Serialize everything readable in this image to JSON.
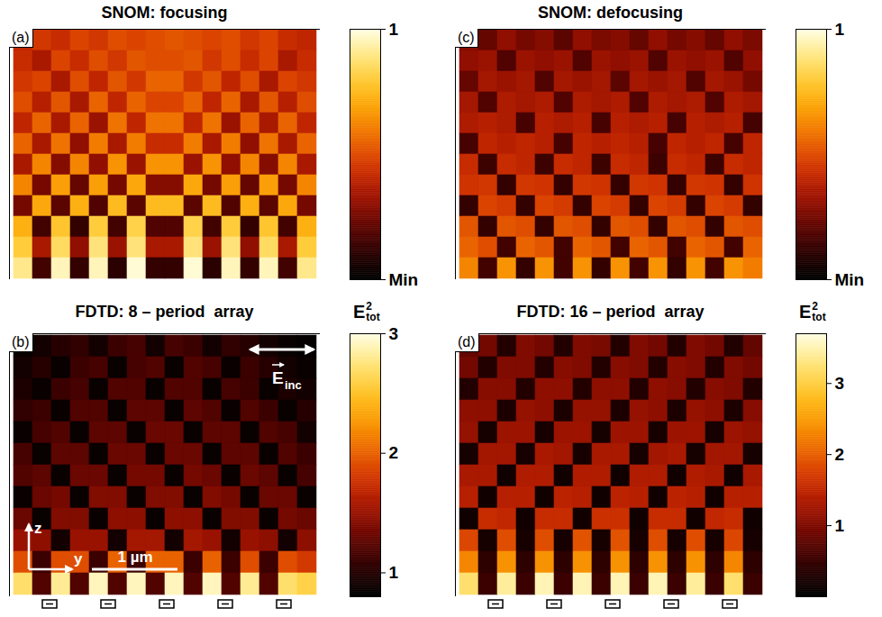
{
  "chart_data": [
    {
      "type": "heatmap",
      "panel": "(a)",
      "title": "SNOM: focusing",
      "tick_labels": false,
      "colorbar": {
        "range": [
          0,
          1
        ],
        "ticks": [
          {
            "value": 0,
            "label": "Min"
          },
          1
        ]
      },
      "values": [
        [
          0.4,
          0.45,
          0.42,
          0.48,
          0.45,
          0.5,
          0.48,
          0.5,
          0.52,
          0.5,
          0.48,
          0.5,
          0.45,
          0.48,
          0.42,
          0.4
        ],
        [
          0.42,
          0.35,
          0.48,
          0.42,
          0.5,
          0.45,
          0.52,
          0.5,
          0.5,
          0.52,
          0.45,
          0.5,
          0.42,
          0.48,
          0.35,
          0.42
        ],
        [
          0.45,
          0.48,
          0.35,
          0.5,
          0.4,
          0.52,
          0.45,
          0.55,
          0.55,
          0.45,
          0.52,
          0.4,
          0.5,
          0.35,
          0.48,
          0.45
        ],
        [
          0.5,
          0.38,
          0.52,
          0.35,
          0.55,
          0.4,
          0.55,
          0.48,
          0.48,
          0.55,
          0.4,
          0.55,
          0.35,
          0.52,
          0.38,
          0.5
        ],
        [
          0.4,
          0.55,
          0.35,
          0.55,
          0.32,
          0.58,
          0.4,
          0.58,
          0.58,
          0.4,
          0.58,
          0.32,
          0.55,
          0.35,
          0.55,
          0.4
        ],
        [
          0.55,
          0.35,
          0.58,
          0.3,
          0.6,
          0.35,
          0.6,
          0.42,
          0.42,
          0.6,
          0.35,
          0.6,
          0.3,
          0.58,
          0.35,
          0.55
        ],
        [
          0.35,
          0.62,
          0.28,
          0.62,
          0.3,
          0.65,
          0.32,
          0.65,
          0.65,
          0.32,
          0.65,
          0.3,
          0.62,
          0.28,
          0.62,
          0.35
        ],
        [
          0.62,
          0.25,
          0.68,
          0.22,
          0.68,
          0.25,
          0.7,
          0.28,
          0.28,
          0.7,
          0.25,
          0.68,
          0.22,
          0.68,
          0.25,
          0.62
        ],
        [
          0.25,
          0.7,
          0.2,
          0.72,
          0.18,
          0.75,
          0.2,
          0.75,
          0.75,
          0.2,
          0.75,
          0.18,
          0.72,
          0.2,
          0.7,
          0.25
        ],
        [
          0.72,
          0.15,
          0.78,
          0.12,
          0.8,
          0.15,
          0.82,
          0.18,
          0.18,
          0.82,
          0.15,
          0.8,
          0.12,
          0.78,
          0.15,
          0.72
        ],
        [
          0.8,
          0.35,
          0.85,
          0.3,
          0.88,
          0.32,
          0.88,
          0.35,
          0.35,
          0.88,
          0.32,
          0.88,
          0.3,
          0.85,
          0.35,
          0.8
        ],
        [
          0.9,
          0.15,
          0.95,
          0.12,
          0.95,
          0.1,
          0.98,
          0.12,
          0.12,
          0.98,
          0.1,
          0.95,
          0.12,
          0.95,
          0.15,
          0.9
        ]
      ]
    },
    {
      "type": "heatmap",
      "panel": "(b)",
      "title": "FDTD: 8 – period  array",
      "tick_labels": false,
      "colorbar": {
        "label": {
          "base": "E",
          "sub": "tot",
          "sup": "2"
        },
        "range": [
          0.8,
          3
        ],
        "ticks": [
          1,
          2,
          3
        ]
      },
      "annotations": {
        "field_arrow": {
          "base": "E",
          "sub": "inc"
        },
        "axes": {
          "vertical": "z",
          "horizontal": "y"
        },
        "scale_bar": "1 µm"
      },
      "values": [
        [
          0.85,
          0.9,
          1.0,
          1.05,
          0.9,
          1.1,
          1.15,
          0.9,
          1.15,
          1.1,
          0.9,
          1.05,
          1.0,
          0.9,
          0.85,
          0.82
        ],
        [
          0.9,
          1.0,
          0.85,
          1.1,
          1.15,
          0.85,
          1.15,
          1.2,
          0.85,
          1.2,
          1.15,
          0.85,
          1.1,
          1.0,
          0.9,
          0.85
        ],
        [
          0.95,
          0.85,
          1.1,
          1.15,
          0.85,
          1.2,
          1.2,
          0.85,
          1.2,
          1.2,
          0.85,
          1.15,
          1.1,
          0.85,
          0.95,
          0.9
        ],
        [
          1.05,
          1.1,
          0.85,
          1.2,
          1.2,
          0.85,
          1.25,
          1.25,
          0.85,
          1.25,
          1.2,
          0.85,
          1.2,
          1.1,
          0.85,
          1.0
        ],
        [
          0.85,
          1.15,
          1.2,
          0.85,
          1.25,
          1.25,
          0.85,
          1.3,
          1.3,
          0.85,
          1.25,
          1.25,
          0.85,
          1.2,
          1.15,
          0.9
        ],
        [
          1.15,
          0.85,
          1.25,
          1.25,
          0.85,
          1.3,
          1.3,
          0.85,
          1.3,
          1.3,
          0.85,
          1.25,
          1.25,
          0.85,
          1.2,
          1.1
        ],
        [
          1.2,
          1.25,
          0.85,
          1.3,
          1.3,
          0.85,
          1.35,
          1.35,
          0.85,
          1.35,
          1.3,
          0.85,
          1.3,
          1.25,
          0.85,
          1.15
        ],
        [
          0.85,
          1.3,
          1.35,
          0.85,
          1.4,
          1.4,
          0.85,
          1.4,
          1.4,
          0.85,
          1.4,
          1.35,
          0.85,
          1.3,
          1.3,
          0.85
        ],
        [
          1.3,
          0.85,
          1.4,
          1.4,
          0.85,
          1.45,
          1.45,
          0.85,
          1.45,
          1.45,
          0.85,
          1.4,
          1.4,
          0.85,
          1.35,
          1.3
        ],
        [
          1.5,
          1.45,
          0.9,
          1.5,
          1.5,
          0.9,
          1.55,
          1.55,
          0.9,
          1.55,
          1.5,
          0.9,
          1.5,
          1.45,
          0.9,
          1.45
        ],
        [
          1.9,
          1.1,
          1.9,
          1.9,
          1.1,
          2.0,
          1.1,
          2.0,
          2.0,
          1.1,
          2.0,
          1.1,
          1.9,
          1.1,
          1.9,
          1.8
        ],
        [
          2.7,
          1.2,
          2.8,
          1.2,
          2.9,
          1.2,
          2.9,
          1.2,
          2.9,
          1.2,
          2.9,
          1.2,
          2.8,
          1.2,
          2.7,
          2.6
        ]
      ]
    },
    {
      "type": "heatmap",
      "panel": "(c)",
      "title": "SNOM: defocusing",
      "tick_labels": false,
      "colorbar": {
        "range": [
          0,
          1
        ],
        "ticks": [
          {
            "value": 0,
            "label": "Min"
          },
          1
        ]
      },
      "values": [
        [
          0.28,
          0.22,
          0.3,
          0.25,
          0.28,
          0.2,
          0.3,
          0.26,
          0.28,
          0.22,
          0.3,
          0.25,
          0.28,
          0.22,
          0.3,
          0.26
        ],
        [
          0.3,
          0.32,
          0.18,
          0.32,
          0.3,
          0.32,
          0.18,
          0.32,
          0.3,
          0.32,
          0.18,
          0.32,
          0.3,
          0.32,
          0.18,
          0.3
        ],
        [
          0.22,
          0.34,
          0.32,
          0.34,
          0.18,
          0.34,
          0.32,
          0.34,
          0.2,
          0.34,
          0.32,
          0.34,
          0.18,
          0.34,
          0.32,
          0.25
        ],
        [
          0.34,
          0.18,
          0.36,
          0.34,
          0.36,
          0.18,
          0.36,
          0.34,
          0.36,
          0.18,
          0.36,
          0.34,
          0.36,
          0.18,
          0.36,
          0.34
        ],
        [
          0.36,
          0.38,
          0.36,
          0.16,
          0.38,
          0.36,
          0.38,
          0.16,
          0.38,
          0.36,
          0.38,
          0.16,
          0.38,
          0.36,
          0.38,
          0.16
        ],
        [
          0.16,
          0.4,
          0.38,
          0.4,
          0.38,
          0.16,
          0.4,
          0.38,
          0.4,
          0.38,
          0.16,
          0.4,
          0.38,
          0.4,
          0.16,
          0.4
        ],
        [
          0.42,
          0.14,
          0.42,
          0.4,
          0.14,
          0.42,
          0.4,
          0.14,
          0.42,
          0.4,
          0.14,
          0.42,
          0.4,
          0.14,
          0.42,
          0.4
        ],
        [
          0.44,
          0.45,
          0.12,
          0.45,
          0.44,
          0.12,
          0.45,
          0.44,
          0.12,
          0.45,
          0.44,
          0.12,
          0.45,
          0.44,
          0.12,
          0.44
        ],
        [
          0.12,
          0.48,
          0.46,
          0.12,
          0.48,
          0.46,
          0.12,
          0.48,
          0.46,
          0.12,
          0.48,
          0.46,
          0.12,
          0.48,
          0.46,
          0.12
        ],
        [
          0.52,
          0.12,
          0.52,
          0.5,
          0.12,
          0.52,
          0.5,
          0.12,
          0.52,
          0.5,
          0.12,
          0.52,
          0.5,
          0.12,
          0.52,
          0.5
        ],
        [
          0.55,
          0.5,
          0.15,
          0.55,
          0.52,
          0.15,
          0.55,
          0.52,
          0.15,
          0.55,
          0.52,
          0.15,
          0.55,
          0.52,
          0.15,
          0.55
        ],
        [
          0.62,
          0.15,
          0.65,
          0.12,
          0.65,
          0.15,
          0.65,
          0.12,
          0.65,
          0.15,
          0.65,
          0.12,
          0.65,
          0.15,
          0.65,
          0.6
        ]
      ]
    },
    {
      "type": "heatmap",
      "panel": "(d)",
      "title": "FDTD: 16 – period  array",
      "tick_labels": false,
      "colorbar": {
        "label": {
          "base": "E",
          "sub": "tot",
          "sup": "2"
        },
        "range": [
          0,
          3.7
        ],
        "ticks": [
          1,
          2,
          3
        ]
      },
      "values": [
        [
          0.8,
          0.9,
          0.3,
          1.0,
          0.9,
          0.3,
          1.0,
          0.95,
          0.3,
          1.0,
          0.9,
          0.3,
          1.0,
          0.9,
          0.3,
          0.8
        ],
        [
          0.9,
          0.3,
          1.0,
          1.0,
          0.3,
          1.05,
          1.0,
          0.3,
          1.05,
          1.0,
          0.3,
          1.05,
          1.0,
          0.3,
          1.0,
          0.9
        ],
        [
          0.3,
          1.05,
          1.05,
          0.3,
          1.1,
          1.1,
          0.3,
          1.1,
          1.1,
          0.3,
          1.1,
          1.05,
          0.3,
          1.05,
          1.0,
          0.3
        ],
        [
          1.1,
          1.1,
          0.25,
          1.15,
          1.1,
          0.25,
          1.15,
          1.15,
          0.25,
          1.15,
          1.1,
          0.25,
          1.15,
          1.1,
          0.25,
          1.05
        ],
        [
          1.15,
          0.2,
          1.2,
          1.2,
          0.2,
          1.2,
          1.2,
          0.2,
          1.2,
          1.2,
          0.2,
          1.2,
          1.2,
          0.2,
          1.2,
          1.15
        ],
        [
          0.2,
          1.25,
          1.25,
          0.2,
          1.3,
          1.25,
          0.2,
          1.3,
          1.3,
          0.2,
          1.25,
          1.3,
          0.2,
          1.25,
          1.25,
          0.2
        ],
        [
          1.3,
          1.3,
          0.15,
          1.35,
          1.35,
          0.15,
          1.35,
          1.35,
          0.15,
          1.35,
          1.35,
          0.15,
          1.35,
          1.3,
          0.15,
          1.3
        ],
        [
          1.4,
          0.15,
          1.4,
          1.4,
          0.15,
          1.45,
          1.4,
          0.15,
          1.45,
          1.4,
          0.15,
          1.45,
          1.4,
          0.15,
          1.4,
          1.4
        ],
        [
          0.15,
          1.55,
          1.5,
          0.15,
          1.55,
          1.55,
          0.15,
          1.6,
          1.6,
          0.15,
          1.55,
          1.55,
          0.15,
          1.5,
          1.55,
          0.15
        ],
        [
          1.8,
          0.2,
          1.85,
          0.2,
          1.85,
          0.2,
          1.9,
          0.2,
          1.9,
          0.2,
          1.85,
          0.2,
          1.85,
          0.2,
          1.8,
          0.2
        ],
        [
          2.3,
          0.4,
          2.4,
          0.4,
          2.4,
          0.4,
          2.4,
          0.4,
          2.4,
          0.4,
          2.4,
          0.4,
          2.4,
          0.4,
          2.3,
          0.4
        ],
        [
          3.2,
          0.5,
          3.4,
          0.5,
          3.5,
          0.5,
          3.5,
          0.5,
          3.5,
          0.5,
          3.5,
          0.5,
          3.4,
          0.5,
          3.2,
          0.5
        ]
      ]
    }
  ]
}
